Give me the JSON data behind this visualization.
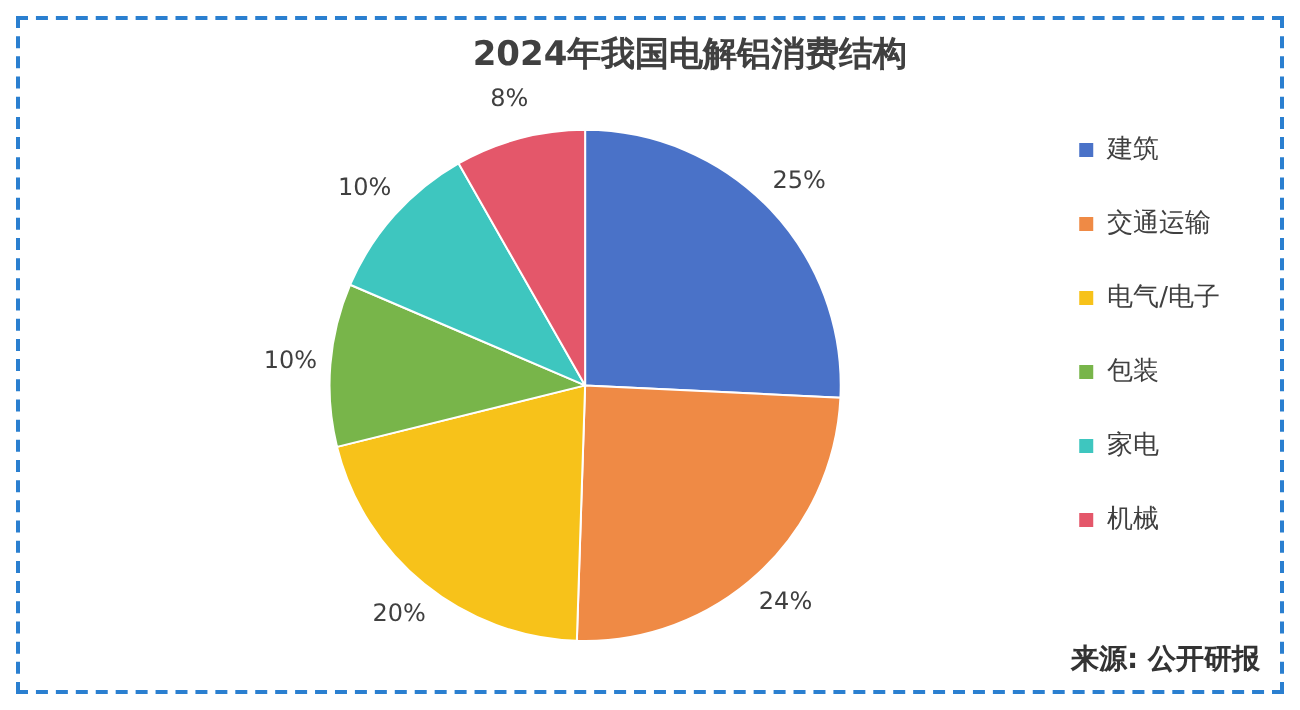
{
  "chart_data": {
    "type": "pie",
    "title": "2024年我国电解铝消费结构",
    "categories": [
      "建筑",
      "交通运输",
      "电气/电子",
      "包装",
      "家电",
      "机械"
    ],
    "values": [
      25,
      24,
      20,
      10,
      10,
      8
    ],
    "value_labels": [
      "25%",
      "24%",
      "20%",
      "10%",
      "10%",
      "8%"
    ],
    "colors": [
      "#4a72c8",
      "#ef8a45",
      "#f7c21a",
      "#78b54a",
      "#3ec6bf",
      "#e4576a"
    ],
    "legend": "right",
    "annotations": [
      "来源: 公开研报"
    ]
  }
}
